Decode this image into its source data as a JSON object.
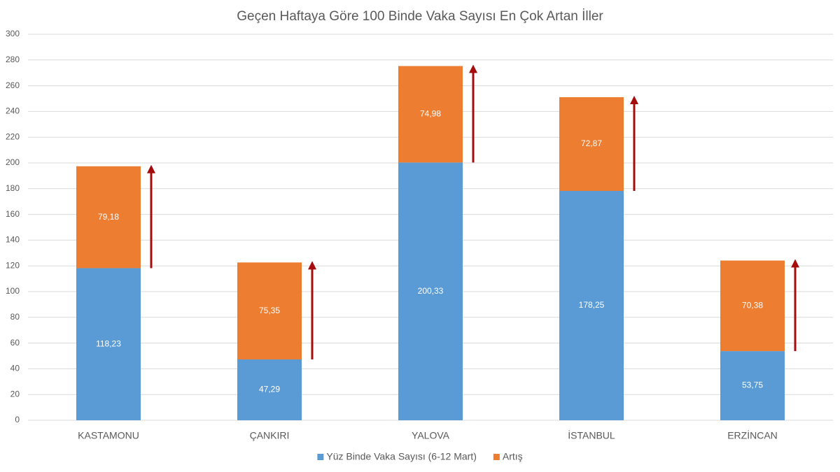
{
  "chart_data": {
    "type": "stacked_bar",
    "title": "Geçen Haftaya Göre 100 Binde Vaka Sayısı En Çok Artan İller",
    "categories": [
      "KASTAMONU",
      "ÇANKIRI",
      "YALOVA",
      "İSTANBUL",
      "ERZİNCAN"
    ],
    "series": [
      {
        "name": "Yüz Binde Vaka Sayısı (6-12 Mart)",
        "color": "#5b9bd5",
        "values": [
          118.23,
          47.29,
          200.33,
          178.25,
          53.75
        ],
        "value_labels": [
          "118,23",
          "47,29",
          "200,33",
          "178,25",
          "53,75"
        ]
      },
      {
        "name": "Artış",
        "color": "#ed7d31",
        "values": [
          79.18,
          75.35,
          74.98,
          72.87,
          70.38
        ],
        "value_labels": [
          "79,18",
          "75,35",
          "74,98",
          "72,87",
          "70,38"
        ]
      }
    ],
    "ylim": [
      0,
      300
    ],
    "yticks": [
      0,
      20,
      40,
      60,
      80,
      100,
      120,
      140,
      160,
      180,
      200,
      220,
      240,
      260,
      280,
      300
    ],
    "grid": true,
    "legend": "bottom"
  }
}
